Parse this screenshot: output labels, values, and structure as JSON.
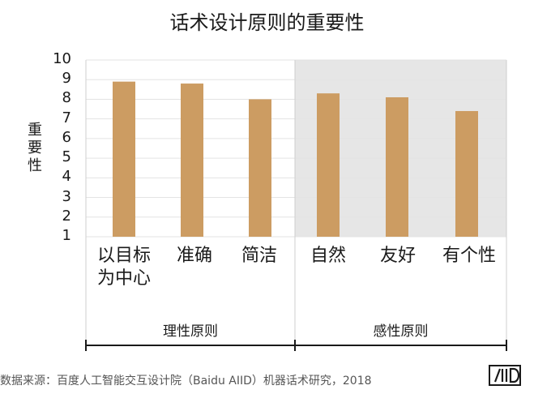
{
  "chart_data": {
    "type": "bar",
    "title": "话术设计原则的重要性",
    "ylabel": "重要性",
    "ylim": [
      1,
      10
    ],
    "yticks": [
      "1",
      "2",
      "3",
      "4",
      "5",
      "6",
      "7",
      "8",
      "9",
      "10"
    ],
    "categories": [
      "以目标为中心",
      "准确",
      "简洁",
      "自然",
      "友好",
      "有个性"
    ],
    "category_lines": [
      [
        "以目标",
        "为中心"
      ],
      [
        "准确"
      ],
      [
        "简洁"
      ],
      [
        "自然"
      ],
      [
        "友好"
      ],
      [
        "有个性"
      ]
    ],
    "values": [
      8.9,
      8.8,
      8.0,
      8.3,
      8.1,
      7.4
    ],
    "groups": [
      {
        "name": "理性原则",
        "categories": [
          "以目标为中心",
          "准确",
          "简洁"
        ]
      },
      {
        "name": "感性原则",
        "categories": [
          "自然",
          "友好",
          "有个性"
        ]
      }
    ],
    "grid": true,
    "bar_color": "#CC9C62",
    "shaded_region_color": "#E6E6E6"
  },
  "source": "数据来源：百度人工智能交互设计院（Baidu AIID）机器话术研究，2018",
  "logo_text": "AIID"
}
